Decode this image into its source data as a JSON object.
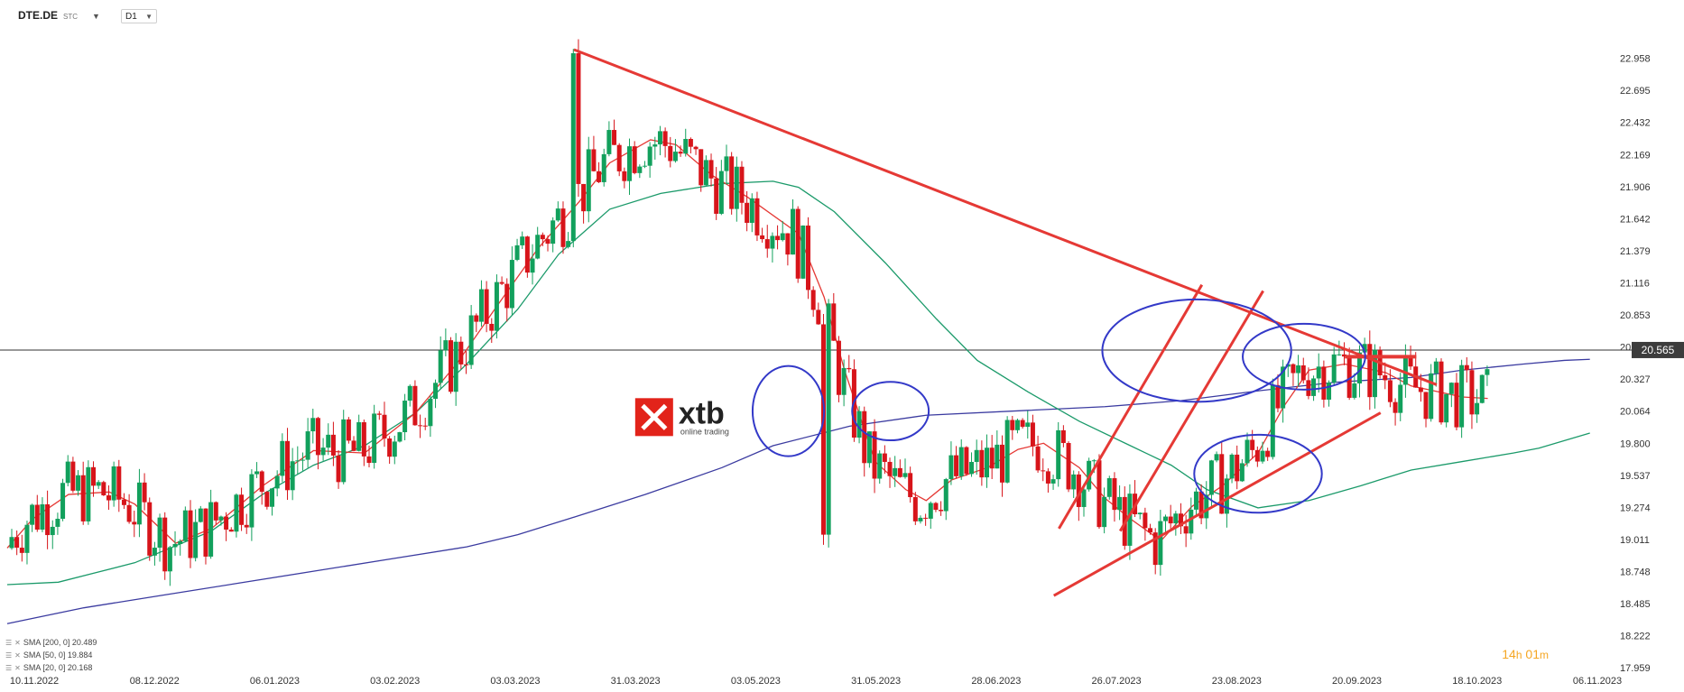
{
  "header": {
    "symbol": "DTE.DE",
    "symbol_suffix": "STC",
    "timeframe": "D1"
  },
  "logo": {
    "text": "xtb",
    "tagline": "online trading",
    "color": "#e2231a"
  },
  "timer": {
    "hours": "14",
    "hours_unit": "h",
    "minutes": "01",
    "minutes_unit": "m"
  },
  "chart_data": {
    "type": "candlestick",
    "x_ticks": [
      "10.11.2022",
      "08.12.2022",
      "06.01.2023",
      "03.02.2023",
      "03.03.2023",
      "31.03.2023",
      "03.05.2023",
      "31.05.2023",
      "28.06.2023",
      "26.07.2023",
      "23.08.2023",
      "20.09.2023",
      "18.10.2023",
      "06.11.2023"
    ],
    "y_ticks": [
      "22.958",
      "22.695",
      "22.432",
      "22.169",
      "21.906",
      "21.642",
      "21.379",
      "21.116",
      "20.853",
      "20.590",
      "20.327",
      "20.064",
      "19.800",
      "19.537",
      "19.274",
      "19.011",
      "18.748",
      "18.485",
      "18.222",
      "17.959"
    ],
    "ylim": [
      17.959,
      23.2
    ],
    "last_price": "20.565",
    "last_price_value": 20.565,
    "colors": {
      "up": "#12a05c",
      "down": "#d7141a",
      "sma200": "#3b3ba0",
      "sma50": "#1b9a6a",
      "sma20": "#e53935",
      "price_label_bg": "#3c3c3c"
    },
    "legend": [
      {
        "label": "SMA [200, 0] 20.489",
        "color": "#3b3ba0"
      },
      {
        "label": "SMA [50, 0] 19.884",
        "color": "#1b9a6a"
      },
      {
        "label": "SMA [20, 0] 20.168",
        "color": "#e53935"
      }
    ],
    "sma200": [
      [
        0,
        18.32
      ],
      [
        15,
        18.45
      ],
      [
        30,
        18.55
      ],
      [
        45,
        18.65
      ],
      [
        60,
        18.75
      ],
      [
        75,
        18.85
      ],
      [
        90,
        18.95
      ],
      [
        100,
        19.05
      ],
      [
        110,
        19.18
      ],
      [
        125,
        19.38
      ],
      [
        140,
        19.6
      ],
      [
        150,
        19.78
      ],
      [
        165,
        19.94
      ],
      [
        180,
        20.03
      ],
      [
        200,
        20.07
      ],
      [
        215,
        20.1
      ],
      [
        230,
        20.15
      ],
      [
        245,
        20.23
      ],
      [
        260,
        20.3
      ],
      [
        275,
        20.34
      ],
      [
        285,
        20.4
      ],
      [
        297,
        20.45
      ],
      [
        305,
        20.48
      ],
      [
        310,
        20.489
      ]
    ],
    "sma50": [
      [
        0,
        18.64
      ],
      [
        10,
        18.66
      ],
      [
        25,
        18.82
      ],
      [
        40,
        19.08
      ],
      [
        50,
        19.38
      ],
      [
        60,
        19.62
      ],
      [
        70,
        19.78
      ],
      [
        80,
        20.05
      ],
      [
        90,
        20.45
      ],
      [
        100,
        20.9
      ],
      [
        108,
        21.35
      ],
      [
        118,
        21.72
      ],
      [
        128,
        21.85
      ],
      [
        140,
        21.93
      ],
      [
        150,
        21.95
      ],
      [
        155,
        21.9
      ],
      [
        162,
        21.7
      ],
      [
        172,
        21.28
      ],
      [
        182,
        20.82
      ],
      [
        190,
        20.48
      ],
      [
        200,
        20.22
      ],
      [
        210,
        19.98
      ],
      [
        220,
        19.78
      ],
      [
        228,
        19.62
      ],
      [
        235,
        19.42
      ],
      [
        245,
        19.27
      ],
      [
        255,
        19.33
      ],
      [
        265,
        19.45
      ],
      [
        275,
        19.58
      ],
      [
        285,
        19.65
      ],
      [
        295,
        19.72
      ],
      [
        300,
        19.76
      ],
      [
        310,
        19.884
      ]
    ],
    "sma20": [
      [
        0,
        18.94
      ],
      [
        5,
        19.18
      ],
      [
        12,
        19.38
      ],
      [
        20,
        19.4
      ],
      [
        25,
        19.3
      ],
      [
        33,
        18.98
      ],
      [
        40,
        19.1
      ],
      [
        50,
        19.45
      ],
      [
        60,
        19.74
      ],
      [
        70,
        19.72
      ],
      [
        80,
        20.05
      ],
      [
        88,
        20.45
      ],
      [
        96,
        20.93
      ],
      [
        104,
        21.4
      ],
      [
        112,
        21.78
      ],
      [
        118,
        22.1
      ],
      [
        126,
        22.29
      ],
      [
        131,
        22.25
      ],
      [
        138,
        22.0
      ],
      [
        145,
        21.82
      ],
      [
        155,
        21.52
      ],
      [
        160,
        21.0
      ],
      [
        164,
        20.4
      ],
      [
        170,
        19.65
      ],
      [
        176,
        19.42
      ],
      [
        180,
        19.33
      ],
      [
        185,
        19.5
      ],
      [
        192,
        19.6
      ],
      [
        198,
        19.75
      ],
      [
        203,
        19.8
      ],
      [
        210,
        19.6
      ],
      [
        215,
        19.35
      ],
      [
        220,
        19.18
      ],
      [
        226,
        19.0
      ],
      [
        232,
        19.28
      ],
      [
        238,
        19.45
      ],
      [
        245,
        19.72
      ],
      [
        250,
        20.1
      ],
      [
        255,
        20.4
      ],
      [
        262,
        20.45
      ],
      [
        270,
        20.38
      ],
      [
        275,
        20.27
      ],
      [
        285,
        20.18
      ],
      [
        290,
        20.168
      ]
    ],
    "trend_lines": [
      {
        "from": [
          111,
          23.03
        ],
        "to": [
          280,
          20.28
        ],
        "width": 3
      },
      {
        "from": [
          205,
          18.55
        ],
        "to": [
          269,
          20.05
        ],
        "width": 3
      },
      {
        "from": [
          206,
          19.1
        ],
        "to": [
          234,
          21.1
        ],
        "width": 3
      },
      {
        "from": [
          218,
          19.08
        ],
        "to": [
          246,
          21.05
        ],
        "width": 3
      },
      {
        "from": [
          262,
          20.51
        ],
        "to": [
          276,
          20.51
        ],
        "width": 4
      }
    ],
    "circles": [
      {
        "cx": 153,
        "cy": 20.064,
        "rx": 7,
        "ry": 0.37
      },
      {
        "cx": 173,
        "cy": 20.064,
        "rx": 7.5,
        "ry": 0.24
      },
      {
        "cx": 233,
        "cy": 20.56,
        "rx": 18.5,
        "ry": 0.42
      },
      {
        "cx": 254,
        "cy": 20.51,
        "rx": 12,
        "ry": 0.27
      },
      {
        "cx": 245,
        "cy": 19.55,
        "rx": 12.5,
        "ry": 0.32
      }
    ],
    "watermark_x": 123,
    "watermark_y": 20.17
  }
}
